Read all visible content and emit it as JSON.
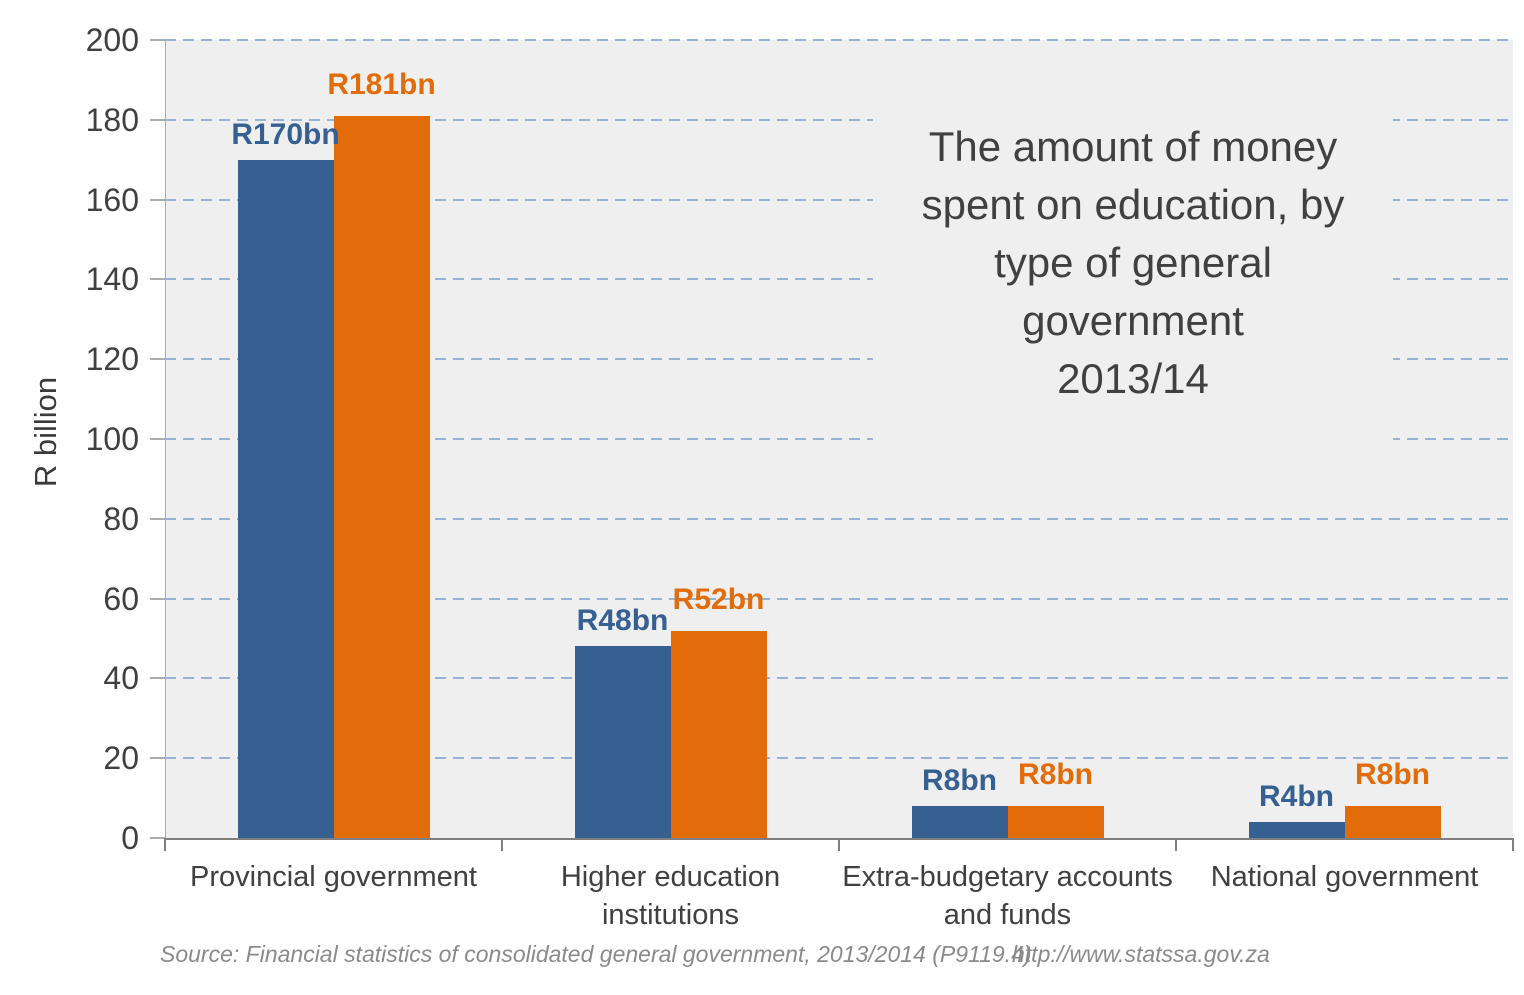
{
  "chart_data": {
    "type": "bar",
    "title": "The amount of money\nspent on education, by\ntype of general\ngovernment\n2013/14",
    "ylabel": "R billion",
    "ylim": [
      0,
      200
    ],
    "yticks": [
      0,
      20,
      40,
      60,
      80,
      100,
      120,
      140,
      160,
      180,
      200
    ],
    "grid": "horizontal-dashed",
    "legend": "none",
    "categories": [
      "Provincial government",
      "Higher education\ninstitutions",
      "Extra-budgetary accounts\nand funds",
      "National government"
    ],
    "series": [
      {
        "name": "blue",
        "color": "#376092",
        "values": [
          170,
          48,
          8,
          4
        ],
        "value_labels": [
          "R170bn",
          "R48bn",
          "R8bn",
          "R4bn"
        ]
      },
      {
        "name": "orange",
        "color": "#E36C0A",
        "values": [
          181,
          52,
          8,
          8
        ],
        "value_labels": [
          "R181bn",
          "R52bn",
          "R8bn",
          "R8bn"
        ]
      }
    ]
  },
  "source_note": {
    "text": "Source: Financial statistics of consolidated general government, 2013/2014 (P9119.4)",
    "url": "http://www.statssa.gov.za"
  },
  "colors": {
    "bar_blue": "#376092",
    "bar_orange": "#E36C0A",
    "gridline": "#95B3D7",
    "axis_line": "#7F7F7F",
    "axis_minor_line": "#ACACAC",
    "plot_background": "#EFEFEF",
    "text": "#404040",
    "source_text": "#8A8A8A"
  }
}
